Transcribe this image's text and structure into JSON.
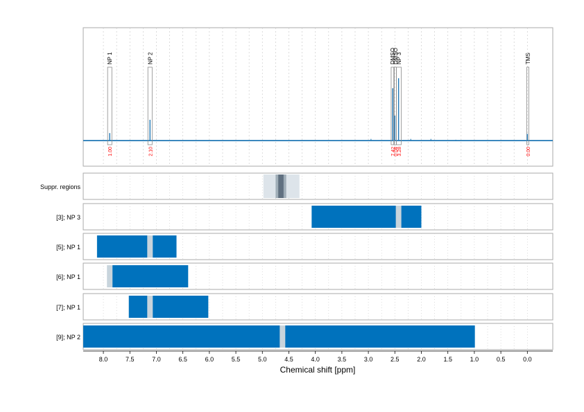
{
  "chart_data": {
    "type": "line",
    "xlabel": "Chemical shift [ppm]",
    "xlim": [
      8.38,
      -0.48
    ],
    "x_reversed": true,
    "x_ticks": [
      "8.0",
      "7.5",
      "7.0",
      "6.5",
      "6.0",
      "5.5",
      "5.0",
      "4.5",
      "4.0",
      "3.5",
      "3.0",
      "2.5",
      "2.0",
      "1.5",
      "1.0",
      "0.5",
      "0.0"
    ],
    "colors": {
      "spectrum": "#1f77b4",
      "bar": "#0072bd",
      "marker": "#c8d4dc",
      "integral_label": "#ff0000",
      "frame": "#aaaaaa",
      "grid": "#cccccc",
      "suppr_light": "#dde4ea",
      "suppr_mid": "#a0aeb8",
      "suppr_dark": "#607080"
    },
    "spectrum": {
      "signals": [
        {
          "label": "NP 1",
          "shift": 7.88,
          "height": 0.09,
          "box_low": 7.84,
          "box_high": 7.92,
          "integral": "1.00"
        },
        {
          "label": "NP 2",
          "shift": 7.12,
          "height": 0.25,
          "box_low": 7.08,
          "box_high": 7.16,
          "integral": "2.10"
        },
        {
          "label": "DMSO",
          "shift": 2.54,
          "height": 0.63,
          "box_low": 2.52,
          "box_high": 2.57,
          "integral": "7.42"
        },
        {
          "label": "DMSO",
          "shift": 2.5,
          "height": 0.3,
          "box_low": 2.48,
          "box_high": 2.51,
          "integral": "0.04"
        },
        {
          "label": "NP 3",
          "shift": 2.43,
          "height": 0.75,
          "box_low": 2.38,
          "box_high": 2.47,
          "integral": "3.28"
        },
        {
          "label": "TMS",
          "shift": 0.0,
          "height": 0.08,
          "box_low": -0.01,
          "box_high": 0.01,
          "integral": "0.00"
        }
      ],
      "minor_peaks": [
        {
          "shift": 2.95,
          "height": 0.02
        },
        {
          "shift": 2.2,
          "height": 0.02
        },
        {
          "shift": 1.82,
          "height": 0.02
        },
        {
          "shift": 1.35,
          "height": 0.01
        }
      ]
    },
    "suppression": {
      "label": "Suppr. regions",
      "bands": [
        {
          "from": 4.98,
          "to": 4.3,
          "level": "light"
        },
        {
          "from": 4.75,
          "to": 4.55,
          "level": "mid"
        },
        {
          "from": 4.7,
          "to": 4.6,
          "level": "dark"
        }
      ]
    },
    "rows": [
      {
        "label": "[3]; NP 3",
        "from": 4.07,
        "to": 2.0,
        "marker": 2.43
      },
      {
        "label": "[5]; NP 1",
        "from": 8.12,
        "to": 6.62,
        "marker": 7.12
      },
      {
        "label": "[6]; NP 1",
        "from": 7.92,
        "to": 6.4,
        "marker": 7.88
      },
      {
        "label": "[7]; NP 1",
        "from": 7.52,
        "to": 6.02,
        "marker": 7.12
      },
      {
        "label": "[9]; NP 2",
        "from": 8.38,
        "to": 0.99,
        "marker": 4.62
      }
    ]
  }
}
